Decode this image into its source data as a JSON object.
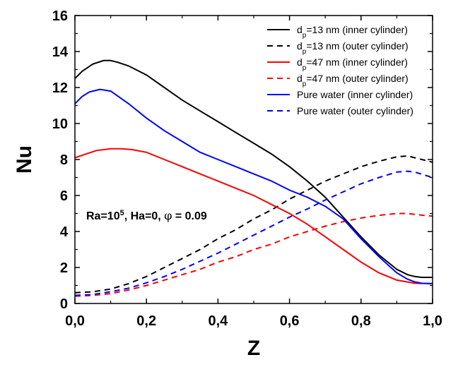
{
  "chart_data": {
    "type": "line",
    "title": "",
    "xlabel": "Z",
    "ylabel": "Nu",
    "xlim": [
      0,
      1
    ],
    "ylim": [
      0,
      16
    ],
    "xticks": [
      {
        "value": 0.0,
        "label": "0,0"
      },
      {
        "value": 0.2,
        "label": "0,2"
      },
      {
        "value": 0.4,
        "label": "0,4"
      },
      {
        "value": 0.6,
        "label": "0,6"
      },
      {
        "value": 0.8,
        "label": "0,8"
      },
      {
        "value": 1.0,
        "label": "1,0"
      }
    ],
    "yticks": [
      {
        "value": 0,
        "label": "0"
      },
      {
        "value": 2,
        "label": "2"
      },
      {
        "value": 4,
        "label": "4"
      },
      {
        "value": 6,
        "label": "6"
      },
      {
        "value": 8,
        "label": "8"
      },
      {
        "value": 10,
        "label": "10"
      },
      {
        "value": 12,
        "label": "12"
      },
      {
        "value": 14,
        "label": "14"
      },
      {
        "value": 16,
        "label": "16"
      }
    ],
    "grid": false,
    "legend_position": "top-right",
    "annotation": {
      "pre": "Ra=10",
      "sup": "5",
      "post": ", Ha=0, ",
      "phi": "φ",
      "tail": " = 0.09"
    },
    "series": [
      {
        "legend_main": "d",
        "legend_sub": "p",
        "legend_rest": "=13 nm",
        "legend_note": "(inner cylinder)",
        "color": "#000000",
        "dash": "solid",
        "x": [
          0,
          0.02,
          0.05,
          0.08,
          0.1,
          0.12,
          0.15,
          0.2,
          0.25,
          0.3,
          0.35,
          0.4,
          0.45,
          0.5,
          0.55,
          0.6,
          0.65,
          0.7,
          0.75,
          0.8,
          0.85,
          0.9,
          0.93,
          0.95,
          0.97,
          1.0
        ],
        "y": [
          12.5,
          12.9,
          13.3,
          13.5,
          13.5,
          13.4,
          13.2,
          12.7,
          12.0,
          11.3,
          10.7,
          10.1,
          9.5,
          8.9,
          8.3,
          7.6,
          6.8,
          5.9,
          4.8,
          3.7,
          2.7,
          1.9,
          1.6,
          1.5,
          1.45,
          1.45
        ]
      },
      {
        "legend_main": "d",
        "legend_sub": "p",
        "legend_rest": "=13 nm",
        "legend_note": "(outer cylinder)",
        "color": "#000000",
        "dash": "dashed",
        "x": [
          0,
          0.05,
          0.1,
          0.15,
          0.2,
          0.25,
          0.3,
          0.35,
          0.4,
          0.45,
          0.5,
          0.55,
          0.6,
          0.65,
          0.7,
          0.75,
          0.8,
          0.85,
          0.9,
          0.93,
          0.95,
          1.0
        ],
        "y": [
          0.6,
          0.65,
          0.8,
          1.1,
          1.5,
          2.0,
          2.5,
          3.0,
          3.6,
          4.1,
          4.7,
          5.2,
          5.8,
          6.3,
          6.8,
          7.2,
          7.6,
          7.9,
          8.15,
          8.2,
          8.1,
          7.85
        ]
      },
      {
        "legend_main": "d",
        "legend_sub": "p",
        "legend_rest": "=47 nm",
        "legend_note": "(inner cylinder)",
        "color": "#ff0000",
        "dash": "solid",
        "x": [
          0,
          0.03,
          0.06,
          0.1,
          0.13,
          0.16,
          0.2,
          0.25,
          0.3,
          0.35,
          0.4,
          0.45,
          0.5,
          0.55,
          0.6,
          0.65,
          0.7,
          0.75,
          0.8,
          0.85,
          0.9,
          0.95,
          1.0
        ],
        "y": [
          8.1,
          8.3,
          8.5,
          8.6,
          8.6,
          8.55,
          8.4,
          8.0,
          7.6,
          7.2,
          6.8,
          6.4,
          6.0,
          5.5,
          5.0,
          4.4,
          3.7,
          3.0,
          2.3,
          1.7,
          1.3,
          1.12,
          1.1
        ]
      },
      {
        "legend_main": "d",
        "legend_sub": "p",
        "legend_rest": "=47 nm",
        "legend_note": "(outer cylinder)",
        "color": "#ff0000",
        "dash": "dashed",
        "x": [
          0,
          0.05,
          0.1,
          0.15,
          0.2,
          0.25,
          0.3,
          0.35,
          0.4,
          0.45,
          0.5,
          0.55,
          0.6,
          0.65,
          0.7,
          0.75,
          0.8,
          0.85,
          0.9,
          0.93,
          0.95,
          1.0
        ],
        "y": [
          0.4,
          0.45,
          0.55,
          0.75,
          1.0,
          1.3,
          1.6,
          1.9,
          2.3,
          2.6,
          3.0,
          3.3,
          3.7,
          4.0,
          4.3,
          4.55,
          4.75,
          4.9,
          5.0,
          5.0,
          4.95,
          4.85
        ]
      },
      {
        "legend_main": "Pure water",
        "legend_sub": "",
        "legend_rest": "",
        "legend_note": "(inner cylinder)",
        "color": "#0000ff",
        "dash": "solid",
        "x": [
          0,
          0.02,
          0.04,
          0.07,
          0.1,
          0.15,
          0.2,
          0.25,
          0.3,
          0.35,
          0.4,
          0.45,
          0.5,
          0.55,
          0.6,
          0.65,
          0.7,
          0.75,
          0.8,
          0.85,
          0.9,
          0.93,
          0.95,
          0.97,
          1.0
        ],
        "y": [
          11.1,
          11.5,
          11.75,
          11.9,
          11.8,
          11.1,
          10.3,
          9.6,
          9.0,
          8.4,
          8.0,
          7.6,
          7.2,
          6.8,
          6.3,
          5.9,
          5.4,
          4.7,
          3.6,
          2.6,
          1.7,
          1.35,
          1.2,
          1.12,
          1.1
        ]
      },
      {
        "legend_main": "Pure water",
        "legend_sub": "",
        "legend_rest": "",
        "legend_note": "(outer cylinder)",
        "color": "#0000ff",
        "dash": "dashed",
        "x": [
          0,
          0.05,
          0.1,
          0.15,
          0.2,
          0.25,
          0.3,
          0.35,
          0.4,
          0.45,
          0.5,
          0.55,
          0.6,
          0.65,
          0.7,
          0.75,
          0.8,
          0.85,
          0.9,
          0.93,
          0.95,
          1.0
        ],
        "y": [
          0.45,
          0.5,
          0.65,
          0.85,
          1.15,
          1.5,
          1.9,
          2.35,
          2.8,
          3.3,
          3.8,
          4.3,
          4.8,
          5.25,
          5.75,
          6.2,
          6.65,
          7.0,
          7.3,
          7.35,
          7.3,
          7.0
        ]
      }
    ]
  }
}
